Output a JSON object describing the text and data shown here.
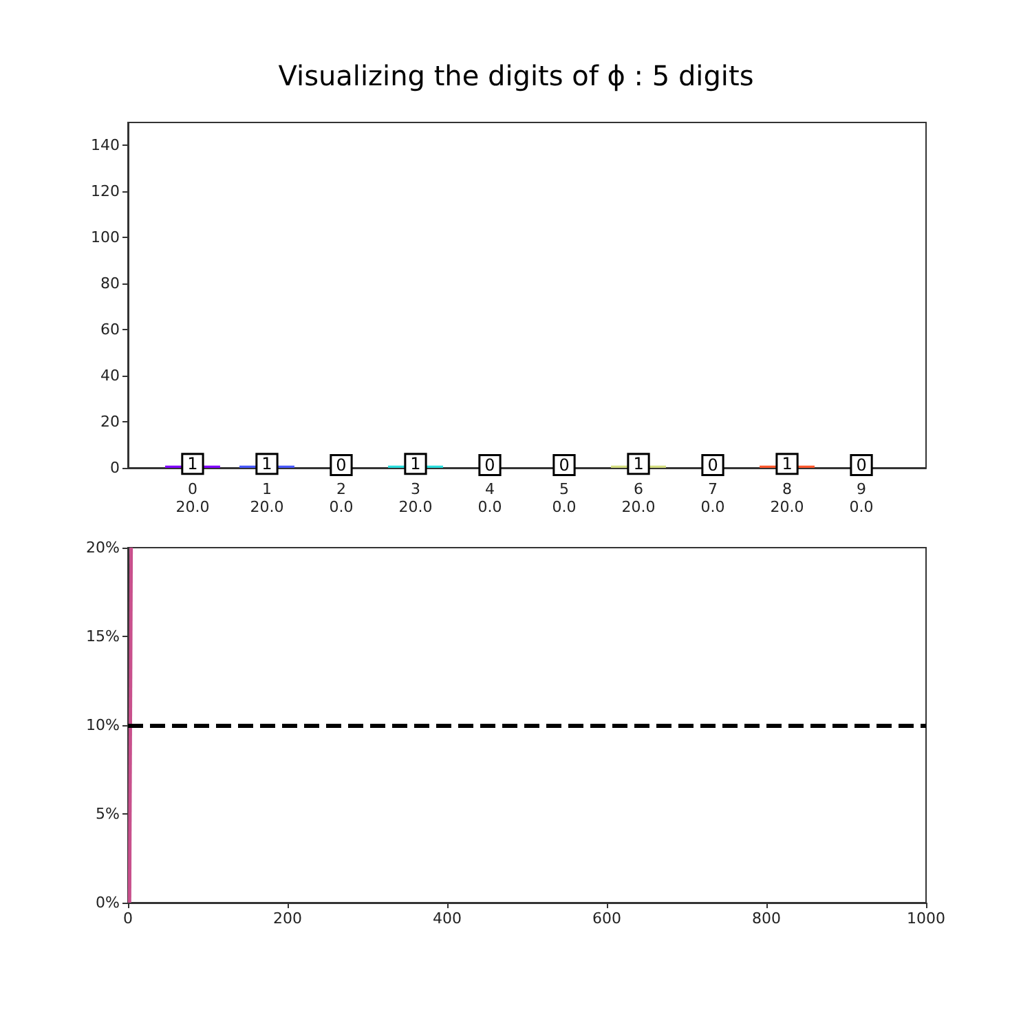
{
  "chart_data": [
    {
      "type": "bar",
      "title": "Visualizing the digits of ϕ : 5 digits",
      "categories": [
        "0\n20.0",
        "1\n20.0",
        "2\n0.0",
        "3\n20.0",
        "4\n0.0",
        "5\n0.0",
        "6\n20.0",
        "7\n0.0",
        "8\n20.0",
        "9\n0.0"
      ],
      "values": [
        1,
        1,
        0,
        1,
        0,
        0,
        1,
        0,
        1,
        0
      ],
      "colors": [
        "#8000ff",
        "#4757fb",
        "#0ea4f0",
        "#2adddd",
        "#63fbc3",
        "#9cfba4",
        "#d4dd80",
        "#ffa457",
        "#ff572c",
        "#ff0000"
      ],
      "ylim": [
        0,
        150
      ],
      "yticks": [
        0,
        20,
        40,
        60,
        80,
        100,
        120,
        140
      ],
      "data_labels": true
    },
    {
      "type": "line",
      "x": [
        2,
        4
      ],
      "series": [
        {
          "color": "#c8508c",
          "values": [
            0,
            20
          ]
        }
      ],
      "xlim": [
        0,
        1000
      ],
      "xticks": [
        0,
        200,
        400,
        600,
        800,
        1000
      ],
      "ylim": [
        0,
        20
      ],
      "yticks": [
        {
          "value": 0,
          "label": "0%"
        },
        {
          "value": 5,
          "label": "5%"
        },
        {
          "value": 10,
          "label": "10%"
        },
        {
          "value": 15,
          "label": "15%"
        },
        {
          "value": 20,
          "label": "20%"
        }
      ],
      "marker": "none",
      "ref_lines": [
        {
          "axis": "y",
          "value": 10,
          "color": "#000000",
          "line_style": "dashed"
        }
      ]
    }
  ]
}
